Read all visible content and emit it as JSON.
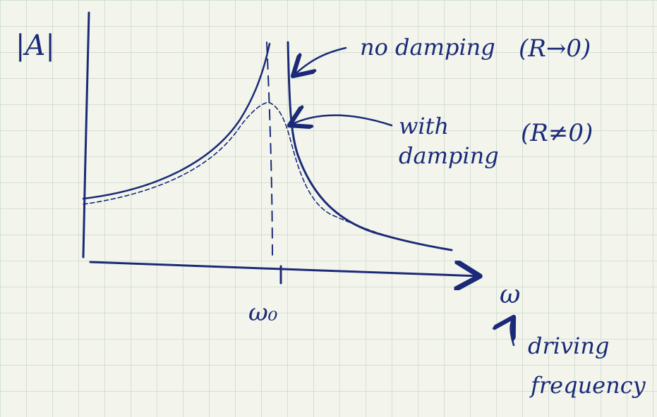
{
  "labels": {
    "amplitude": "|A|",
    "undamped": "no damping",
    "undamped_condition": "(R→0)",
    "damped_line1": "with",
    "damped_line2": "damping",
    "damped_condition": "(R≠0)",
    "resonance": "ω₀",
    "frequency_axis": "ω",
    "frequency_note_line1": "driving",
    "frequency_note_line2": "frequency"
  }
}
